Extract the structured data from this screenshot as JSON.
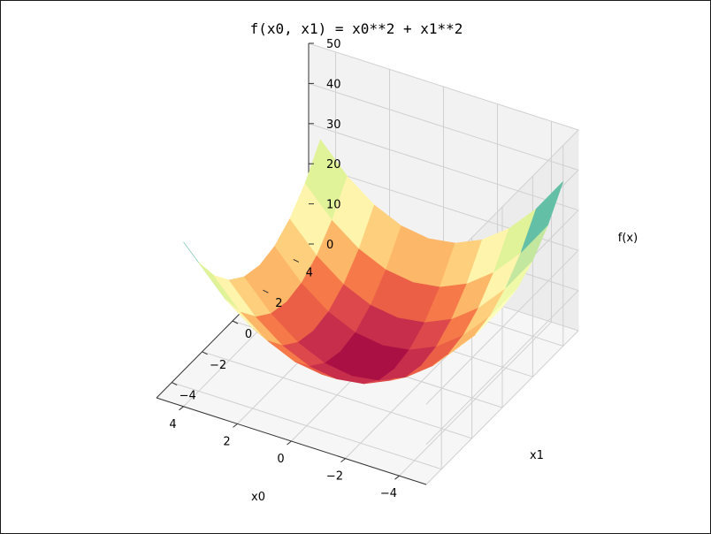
{
  "chart_data": {
    "type": "surface3d",
    "title": "f(x0, x1) = x0**2 + x1**2",
    "xlabel": "x0",
    "ylabel": "x1",
    "zlabel": "f(x)",
    "xlim": [
      -5,
      5
    ],
    "ylim": [
      -5,
      5
    ],
    "zlim": [
      0,
      50
    ],
    "x_ticks": [
      "−4",
      "−2",
      "0",
      "2",
      "4"
    ],
    "y_ticks": [
      "−4",
      "−2",
      "0",
      "2",
      "4"
    ],
    "z_ticks": [
      "0",
      "10",
      "20",
      "30",
      "40",
      "50"
    ],
    "colormap": "Spectral",
    "grid_x": [
      -5,
      -4,
      -3,
      -2,
      -1,
      0,
      1,
      2,
      3,
      4
    ],
    "grid_y": [
      -5,
      -4,
      -3,
      -2,
      -1,
      0,
      1,
      2,
      3,
      4
    ],
    "function": "x0**2 + x1**2",
    "grid": true
  }
}
